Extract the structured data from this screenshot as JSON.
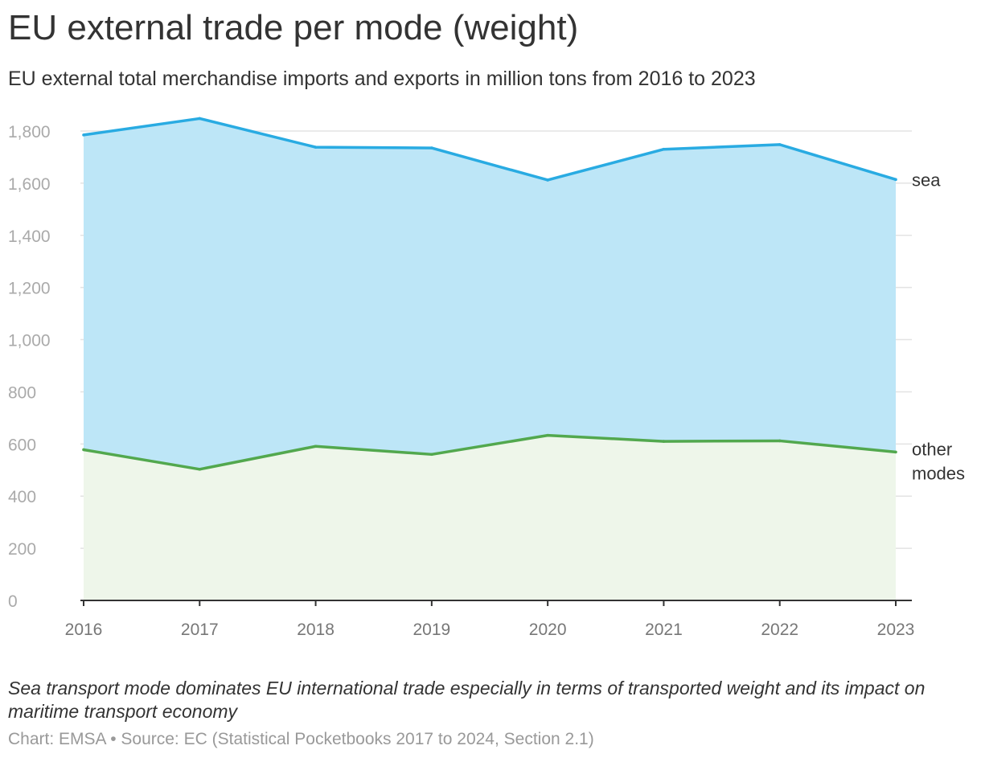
{
  "title": "EU external trade per mode (weight)",
  "subtitle": "EU external total merchandise imports and exports in million tons from 2016 to 2023",
  "note": "Sea transport mode dominates EU international trade especially in terms of transported weight and its impact on maritime transport economy",
  "credit": "Chart: EMSA • Source: EC (Statistical Pocketbooks 2017 to 2024, Section 2.1)",
  "chart_data": {
    "type": "area",
    "title": "EU external trade per mode (weight)",
    "xlabel": "",
    "ylabel": "million tons",
    "x": [
      "2016",
      "2017",
      "2018",
      "2019",
      "2020",
      "2021",
      "2022",
      "2023"
    ],
    "ylim": [
      0,
      1800
    ],
    "yticks": [
      0,
      200,
      400,
      600,
      800,
      1000,
      1200,
      1400,
      1600,
      1800
    ],
    "ytick_labels": [
      "0",
      "200",
      "400",
      "600",
      "800",
      "1,000",
      "1,200",
      "1,400",
      "1,600",
      "1,800"
    ],
    "grid": true,
    "legend": "direct labels at right end of lines",
    "series": [
      {
        "name": "sea",
        "label_lines": [
          "sea"
        ],
        "line_color": "#29ABE2",
        "fill_color": "#BDE6F7",
        "values": [
          1785,
          1848,
          1738,
          1735,
          1612,
          1730,
          1748,
          1614
        ]
      },
      {
        "name": "other modes",
        "label_lines": [
          "other",
          "modes"
        ],
        "line_color": "#52A84E",
        "fill_color": "#EEF6EA",
        "values": [
          578,
          503,
          591,
          560,
          633,
          610,
          612,
          569
        ]
      }
    ]
  }
}
